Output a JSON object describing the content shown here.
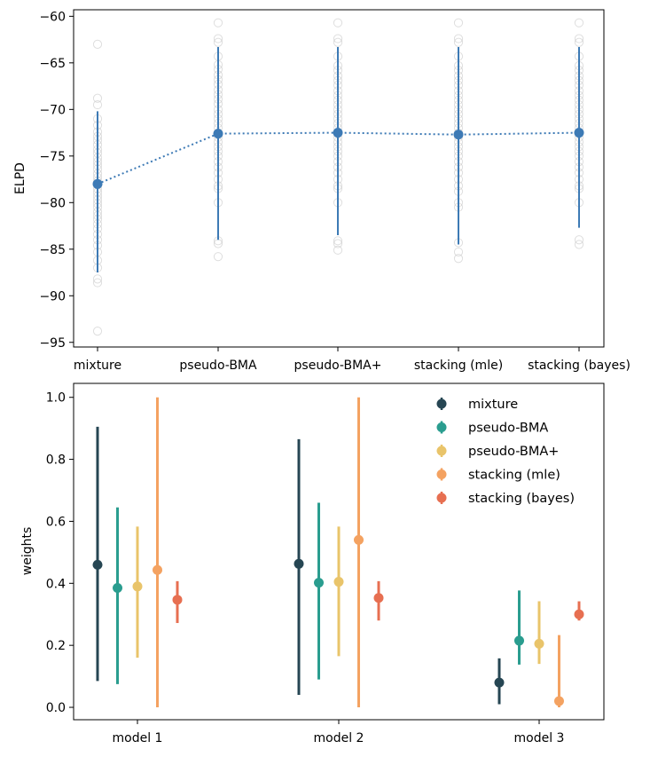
{
  "chart_data": [
    {
      "type": "scatter",
      "title": "",
      "xlabel": "",
      "ylabel": "ELPD",
      "ylim": [
        -95.5,
        -59.3
      ],
      "yticks": [
        -95,
        -90,
        -85,
        -80,
        -75,
        -70,
        -65,
        -60
      ],
      "ytick_labels": [
        "−95",
        "−90",
        "−85",
        "−80",
        "−75",
        "−70",
        "−65",
        "−60"
      ],
      "categories": [
        "mixture",
        "pseudo-BMA",
        "pseudo-BMA+",
        "stacking (mle)",
        "stacking (bayes)"
      ],
      "grid": false,
      "summary": {
        "name": "mean ELPD",
        "color": "#3d7ab5",
        "line_style": "dotted",
        "means": [
          -78.0,
          -72.6,
          -72.5,
          -72.7,
          -72.5
        ],
        "lower": [
          -87.5,
          -84.0,
          -83.5,
          -84.5,
          -82.7
        ],
        "upper": [
          -70.2,
          -63.3,
          -63.3,
          -63.3,
          -63.3
        ]
      },
      "samples": [
        [
          -63.0,
          -68.8,
          -69.5,
          -71.0,
          -71.7,
          -72.4,
          -72.9,
          -73.3,
          -73.8,
          -74.3,
          -74.7,
          -75.2,
          -75.6,
          -76.0,
          -76.4,
          -76.9,
          -77.3,
          -77.7,
          -78.1,
          -78.5,
          -78.9,
          -79.3,
          -79.7,
          -80.1,
          -80.5,
          -81.0,
          -81.4,
          -81.8,
          -82.3,
          -82.8,
          -83.4,
          -84.0,
          -84.6,
          -85.3,
          -86.2,
          -87.0,
          -88.2,
          -88.6,
          -93.8
        ],
        [
          -60.7,
          -62.4,
          -62.8,
          -64.3,
          -65.2,
          -65.7,
          -66.3,
          -66.8,
          -67.3,
          -67.9,
          -68.4,
          -68.9,
          -69.4,
          -70.0,
          -70.5,
          -71.0,
          -71.5,
          -72.0,
          -72.5,
          -73.0,
          -73.5,
          -74.0,
          -74.5,
          -75.0,
          -75.6,
          -76.2,
          -76.8,
          -77.5,
          -78.2,
          -78.5,
          -80.0,
          -84.1,
          -84.4,
          -85.8
        ],
        [
          -60.7,
          -62.4,
          -62.8,
          -64.3,
          -65.3,
          -65.8,
          -66.4,
          -66.9,
          -67.4,
          -68.0,
          -68.5,
          -69.0,
          -69.5,
          -70.0,
          -70.5,
          -71.0,
          -71.5,
          -72.0,
          -72.5,
          -73.0,
          -73.5,
          -74.0,
          -74.5,
          -75.0,
          -75.6,
          -76.2,
          -76.8,
          -77.5,
          -78.2,
          -78.5,
          -80.0,
          -84.1,
          -84.4,
          -85.1
        ],
        [
          -60.7,
          -62.4,
          -62.8,
          -64.3,
          -65.3,
          -65.8,
          -66.4,
          -66.9,
          -67.4,
          -68.0,
          -68.5,
          -69.0,
          -69.5,
          -70.0,
          -70.5,
          -71.0,
          -71.5,
          -72.0,
          -72.5,
          -73.0,
          -73.5,
          -74.0,
          -74.5,
          -75.0,
          -75.6,
          -76.2,
          -76.8,
          -77.5,
          -78.2,
          -78.8,
          -80.0,
          -80.5,
          -84.3,
          -85.3,
          -86.0
        ],
        [
          -60.7,
          -62.4,
          -62.8,
          -64.3,
          -65.3,
          -65.8,
          -66.4,
          -66.9,
          -67.4,
          -68.0,
          -68.5,
          -69.0,
          -69.5,
          -70.0,
          -70.5,
          -71.0,
          -71.5,
          -72.0,
          -72.5,
          -73.0,
          -73.5,
          -74.0,
          -74.5,
          -75.0,
          -75.6,
          -76.2,
          -76.8,
          -77.5,
          -78.2,
          -78.5,
          -80.0,
          -84.0,
          -84.5
        ]
      ]
    },
    {
      "type": "scatter",
      "title": "",
      "xlabel": "",
      "ylabel": "weights",
      "ylim": [
        -0.04,
        1.045
      ],
      "yticks": [
        0.0,
        0.2,
        0.4,
        0.6,
        0.8,
        1.0
      ],
      "ytick_labels": [
        "0.0",
        "0.2",
        "0.4",
        "0.6",
        "0.8",
        "1.0"
      ],
      "categories": [
        "model 1",
        "model 2",
        "model 3"
      ],
      "grid": false,
      "legend": "top-right",
      "series": [
        {
          "name": "mixture",
          "color": "#264653",
          "values": [
            0.46,
            0.463,
            0.08
          ],
          "lower": [
            0.085,
            0.04,
            0.01
          ],
          "upper": [
            0.905,
            0.865,
            0.158
          ]
        },
        {
          "name": "pseudo-BMA",
          "color": "#2a9d8f",
          "values": [
            0.385,
            0.402,
            0.215
          ],
          "lower": [
            0.075,
            0.09,
            0.138
          ],
          "upper": [
            0.645,
            0.66,
            0.377
          ]
        },
        {
          "name": "pseudo-BMA+",
          "color": "#e9c46a",
          "values": [
            0.39,
            0.405,
            0.205
          ],
          "lower": [
            0.16,
            0.165,
            0.14
          ],
          "upper": [
            0.583,
            0.583,
            0.342
          ]
        },
        {
          "name": "stacking (mle)",
          "color": "#f4a261",
          "values": [
            0.443,
            0.54,
            0.02
          ],
          "lower": [
            0.0,
            0.0,
            0.0
          ],
          "upper": [
            1.0,
            1.0,
            0.233
          ]
        },
        {
          "name": "stacking (bayes)",
          "color": "#e76f51",
          "values": [
            0.347,
            0.353,
            0.3
          ],
          "lower": [
            0.272,
            0.28,
            0.28
          ],
          "upper": [
            0.407,
            0.407,
            0.342
          ]
        }
      ]
    }
  ]
}
